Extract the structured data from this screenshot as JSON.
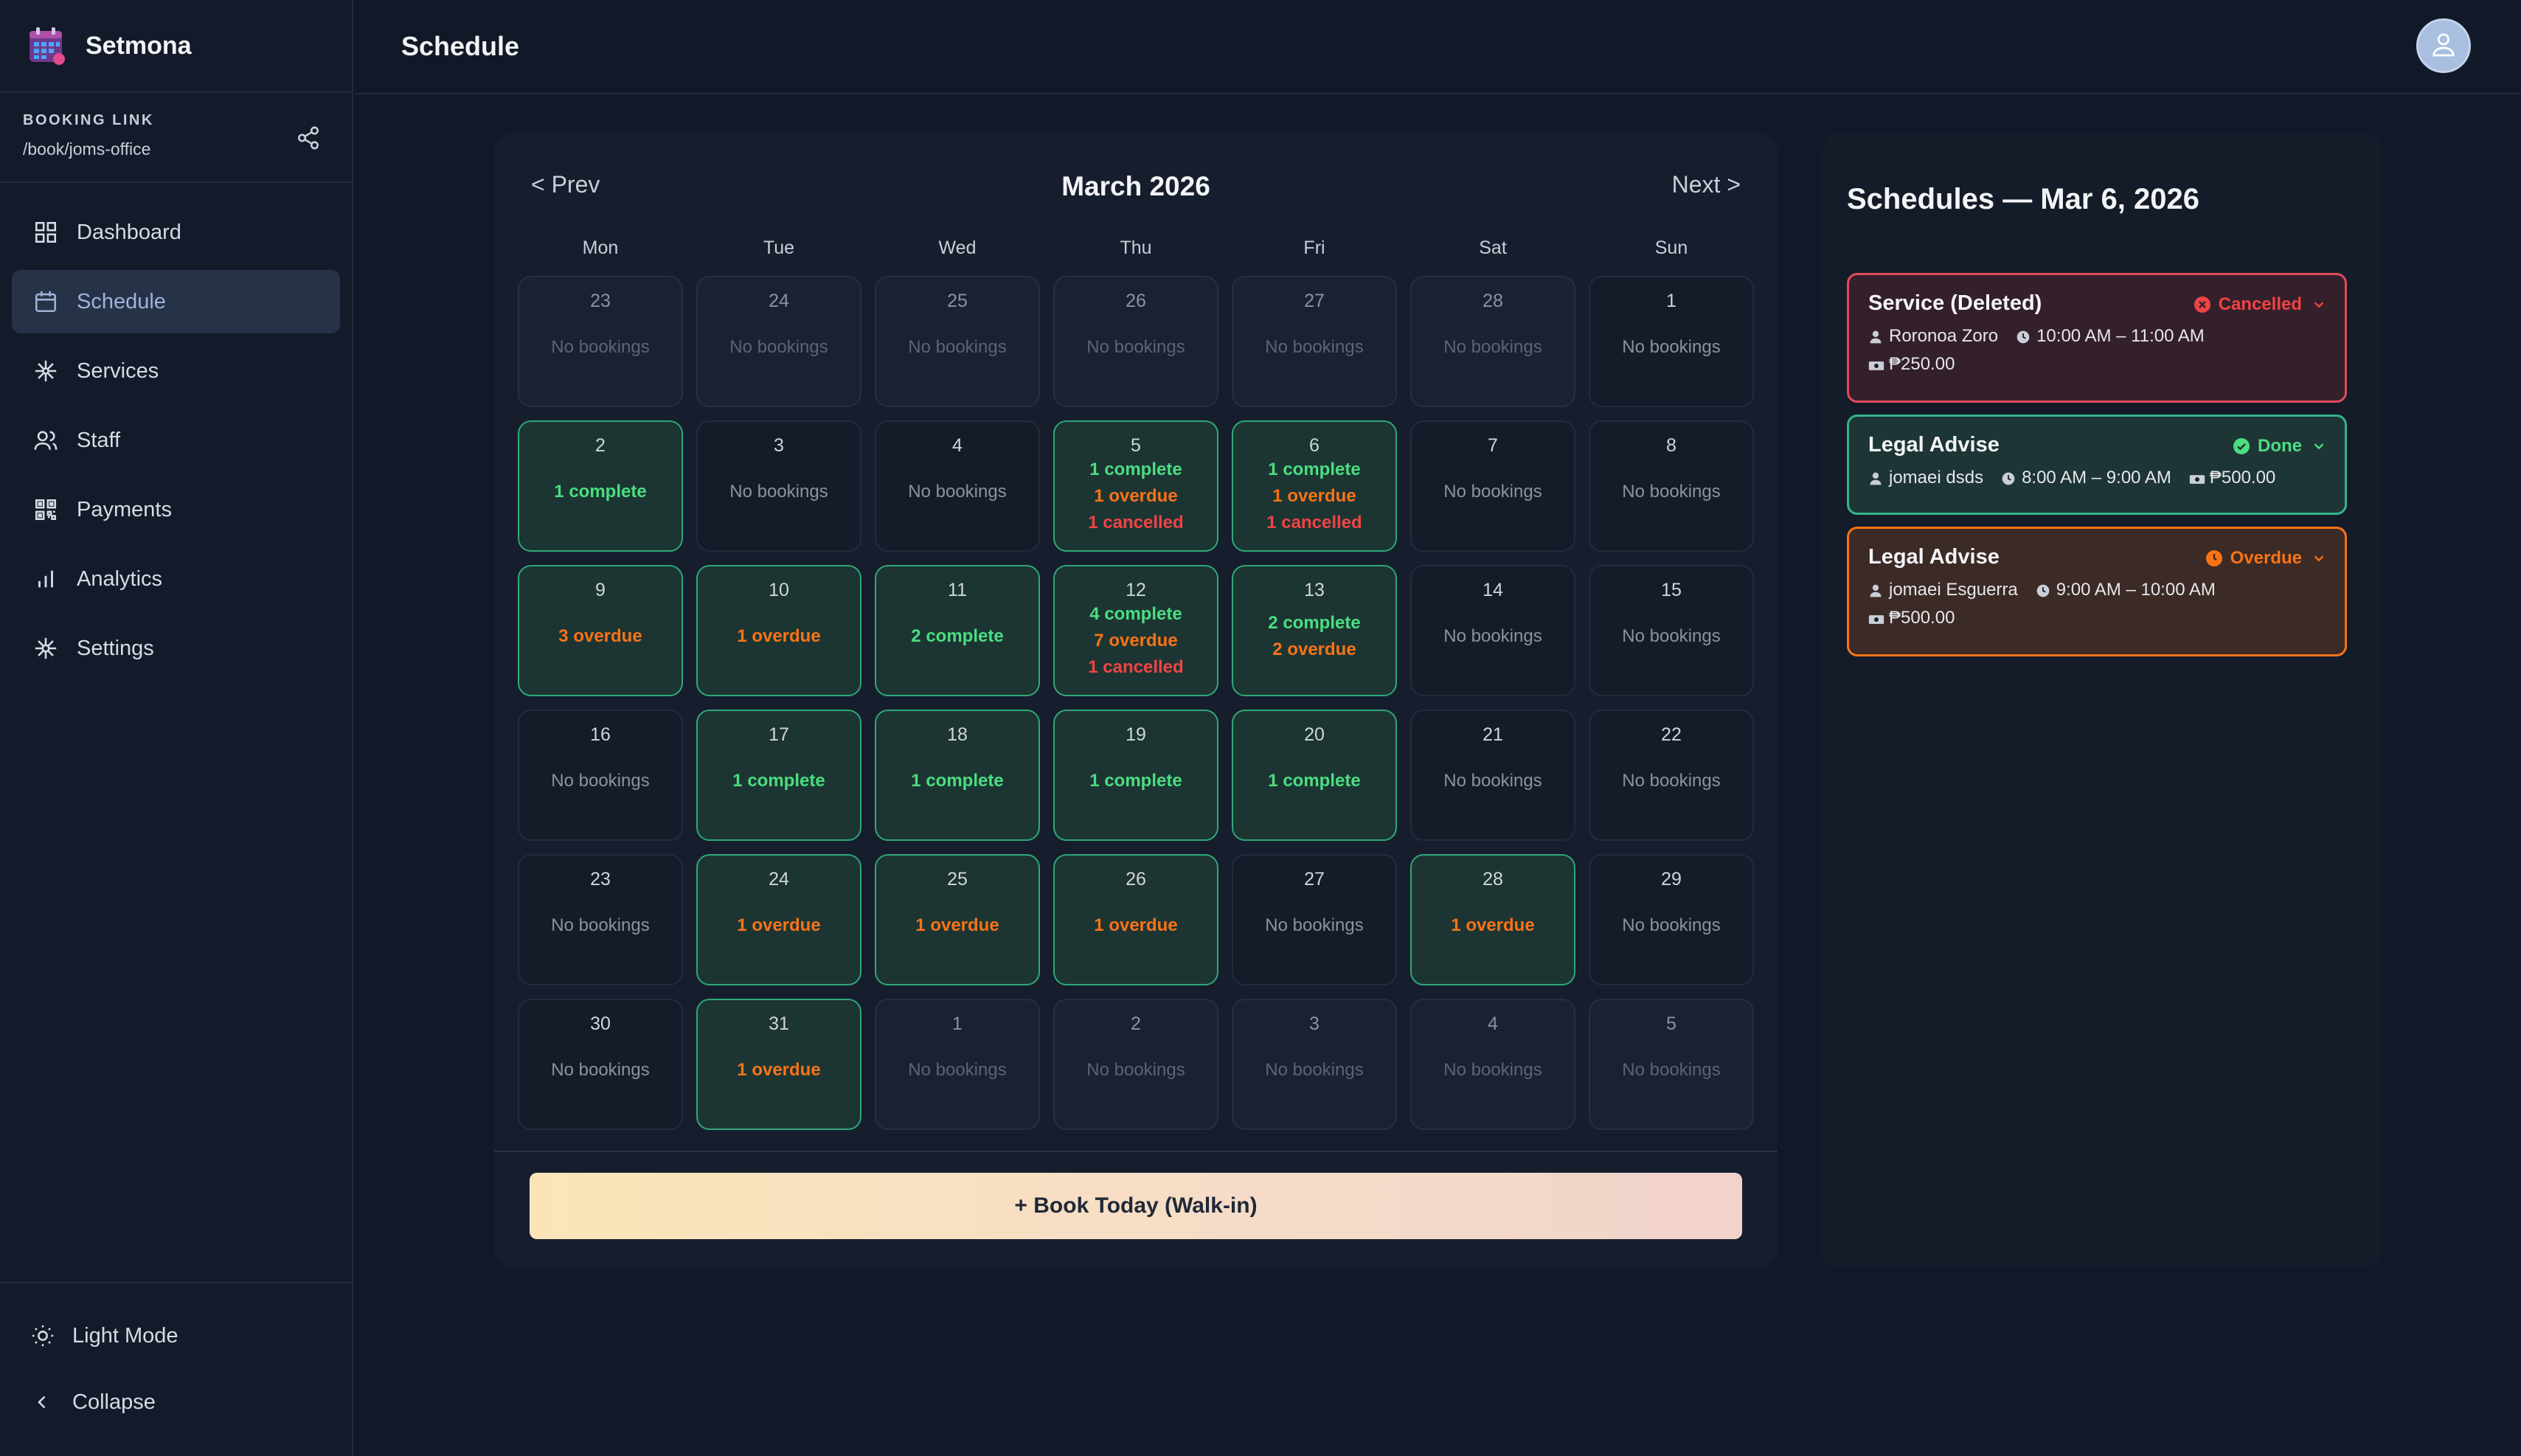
{
  "app": {
    "name": "Setmona"
  },
  "booking_link": {
    "title": "BOOKING LINK",
    "path": "/book/joms-office"
  },
  "nav": [
    {
      "label": "Dashboard",
      "icon": "dashboard-icon"
    },
    {
      "label": "Schedule",
      "icon": "calendar-icon",
      "active": true
    },
    {
      "label": "Services",
      "icon": "services-icon"
    },
    {
      "label": "Staff",
      "icon": "staff-icon"
    },
    {
      "label": "Payments",
      "icon": "payments-icon"
    },
    {
      "label": "Analytics",
      "icon": "analytics-icon"
    },
    {
      "label": "Settings",
      "icon": "settings-icon"
    }
  ],
  "bottom": {
    "theme": "Light Mode",
    "collapse": "Collapse"
  },
  "header": {
    "title": "Schedule"
  },
  "calendar": {
    "prev": "< Prev",
    "next": "Next >",
    "month": "March 2026",
    "weekdays": [
      "Mon",
      "Tue",
      "Wed",
      "Thu",
      "Fri",
      "Sat",
      "Sun"
    ],
    "days": [
      {
        "d": "23",
        "outside": true,
        "stats": [
          {
            "t": "No bookings",
            "k": "none"
          }
        ]
      },
      {
        "d": "24",
        "outside": true,
        "stats": [
          {
            "t": "No bookings",
            "k": "none"
          }
        ]
      },
      {
        "d": "25",
        "outside": true,
        "stats": [
          {
            "t": "No bookings",
            "k": "none"
          }
        ]
      },
      {
        "d": "26",
        "outside": true,
        "stats": [
          {
            "t": "No bookings",
            "k": "none"
          }
        ]
      },
      {
        "d": "27",
        "outside": true,
        "stats": [
          {
            "t": "No bookings",
            "k": "none"
          }
        ]
      },
      {
        "d": "28",
        "outside": true,
        "stats": [
          {
            "t": "No bookings",
            "k": "none"
          }
        ]
      },
      {
        "d": "1",
        "stats": [
          {
            "t": "No bookings",
            "k": "none"
          }
        ]
      },
      {
        "d": "2",
        "active": true,
        "stats": [
          {
            "t": "1 complete",
            "k": "complete"
          }
        ]
      },
      {
        "d": "3",
        "stats": [
          {
            "t": "No bookings",
            "k": "none"
          }
        ]
      },
      {
        "d": "4",
        "stats": [
          {
            "t": "No bookings",
            "k": "none"
          }
        ]
      },
      {
        "d": "5",
        "active": true,
        "stats": [
          {
            "t": "1 complete",
            "k": "complete"
          },
          {
            "t": "1 overdue",
            "k": "overdue"
          },
          {
            "t": "1 cancelled",
            "k": "cancelled"
          }
        ]
      },
      {
        "d": "6",
        "active": true,
        "stats": [
          {
            "t": "1 complete",
            "k": "complete"
          },
          {
            "t": "1 overdue",
            "k": "overdue"
          },
          {
            "t": "1 cancelled",
            "k": "cancelled"
          }
        ]
      },
      {
        "d": "7",
        "stats": [
          {
            "t": "No bookings",
            "k": "none"
          }
        ]
      },
      {
        "d": "8",
        "stats": [
          {
            "t": "No bookings",
            "k": "none"
          }
        ]
      },
      {
        "d": "9",
        "active": true,
        "stats": [
          {
            "t": "3 overdue",
            "k": "overdue"
          }
        ]
      },
      {
        "d": "10",
        "active": true,
        "stats": [
          {
            "t": "1 overdue",
            "k": "overdue"
          }
        ]
      },
      {
        "d": "11",
        "active": true,
        "stats": [
          {
            "t": "2 complete",
            "k": "complete"
          }
        ]
      },
      {
        "d": "12",
        "active": true,
        "stats": [
          {
            "t": "4 complete",
            "k": "complete"
          },
          {
            "t": "7 overdue",
            "k": "overdue"
          },
          {
            "t": "1 cancelled",
            "k": "cancelled"
          }
        ]
      },
      {
        "d": "13",
        "active": true,
        "stats": [
          {
            "t": "2 complete",
            "k": "complete"
          },
          {
            "t": "2 overdue",
            "k": "overdue"
          }
        ]
      },
      {
        "d": "14",
        "stats": [
          {
            "t": "No bookings",
            "k": "none"
          }
        ]
      },
      {
        "d": "15",
        "stats": [
          {
            "t": "No bookings",
            "k": "none"
          }
        ]
      },
      {
        "d": "16",
        "stats": [
          {
            "t": "No bookings",
            "k": "none"
          }
        ]
      },
      {
        "d": "17",
        "active": true,
        "stats": [
          {
            "t": "1 complete",
            "k": "complete"
          }
        ]
      },
      {
        "d": "18",
        "active": true,
        "stats": [
          {
            "t": "1 complete",
            "k": "complete"
          }
        ]
      },
      {
        "d": "19",
        "active": true,
        "stats": [
          {
            "t": "1 complete",
            "k": "complete"
          }
        ]
      },
      {
        "d": "20",
        "active": true,
        "stats": [
          {
            "t": "1 complete",
            "k": "complete"
          }
        ]
      },
      {
        "d": "21",
        "stats": [
          {
            "t": "No bookings",
            "k": "none"
          }
        ]
      },
      {
        "d": "22",
        "stats": [
          {
            "t": "No bookings",
            "k": "none"
          }
        ]
      },
      {
        "d": "23",
        "stats": [
          {
            "t": "No bookings",
            "k": "none"
          }
        ]
      },
      {
        "d": "24",
        "active": true,
        "stats": [
          {
            "t": "1 overdue",
            "k": "overdue"
          }
        ]
      },
      {
        "d": "25",
        "active": true,
        "stats": [
          {
            "t": "1 overdue",
            "k": "overdue"
          }
        ]
      },
      {
        "d": "26",
        "active": true,
        "stats": [
          {
            "t": "1 overdue",
            "k": "overdue"
          }
        ]
      },
      {
        "d": "27",
        "stats": [
          {
            "t": "No bookings",
            "k": "none"
          }
        ]
      },
      {
        "d": "28",
        "active": true,
        "stats": [
          {
            "t": "1 overdue",
            "k": "overdue"
          }
        ]
      },
      {
        "d": "29",
        "stats": [
          {
            "t": "No bookings",
            "k": "none"
          }
        ]
      },
      {
        "d": "30",
        "stats": [
          {
            "t": "No bookings",
            "k": "none"
          }
        ]
      },
      {
        "d": "31",
        "active": true,
        "stats": [
          {
            "t": "1 overdue",
            "k": "overdue"
          }
        ]
      },
      {
        "d": "1",
        "outside": true,
        "stats": [
          {
            "t": "No bookings",
            "k": "none"
          }
        ]
      },
      {
        "d": "2",
        "outside": true,
        "stats": [
          {
            "t": "No bookings",
            "k": "none"
          }
        ]
      },
      {
        "d": "3",
        "outside": true,
        "stats": [
          {
            "t": "No bookings",
            "k": "none"
          }
        ]
      },
      {
        "d": "4",
        "outside": true,
        "stats": [
          {
            "t": "No bookings",
            "k": "none"
          }
        ]
      },
      {
        "d": "5",
        "outside": true,
        "stats": [
          {
            "t": "No bookings",
            "k": "none"
          }
        ]
      }
    ],
    "book_button": "+ Book Today (Walk-in)"
  },
  "schedules": {
    "title": "Schedules — Mar 6, 2026",
    "items": [
      {
        "title": "Service (Deleted)",
        "status": "Cancelled",
        "kind": "cancelled",
        "customer": "Roronoa Zoro",
        "time": "10:00 AM – 11:00 AM",
        "price": "₱250.00",
        "price_inline": false
      },
      {
        "title": "Legal Advise",
        "status": "Done",
        "kind": "done",
        "customer": "jomaei dsds",
        "time": "8:00 AM – 9:00 AM",
        "price": "₱500.00",
        "price_inline": true
      },
      {
        "title": "Legal Advise",
        "status": "Overdue",
        "kind": "overdue",
        "customer": "jomaei Esguerra",
        "time": "9:00 AM – 10:00 AM",
        "price": "₱500.00",
        "price_inline": false
      }
    ]
  },
  "colors": {
    "background": "#111827",
    "complete": "#4ade80",
    "overdue": "#f97316",
    "cancelled": "#ef4444",
    "active_cell_border": "#2ea877"
  }
}
